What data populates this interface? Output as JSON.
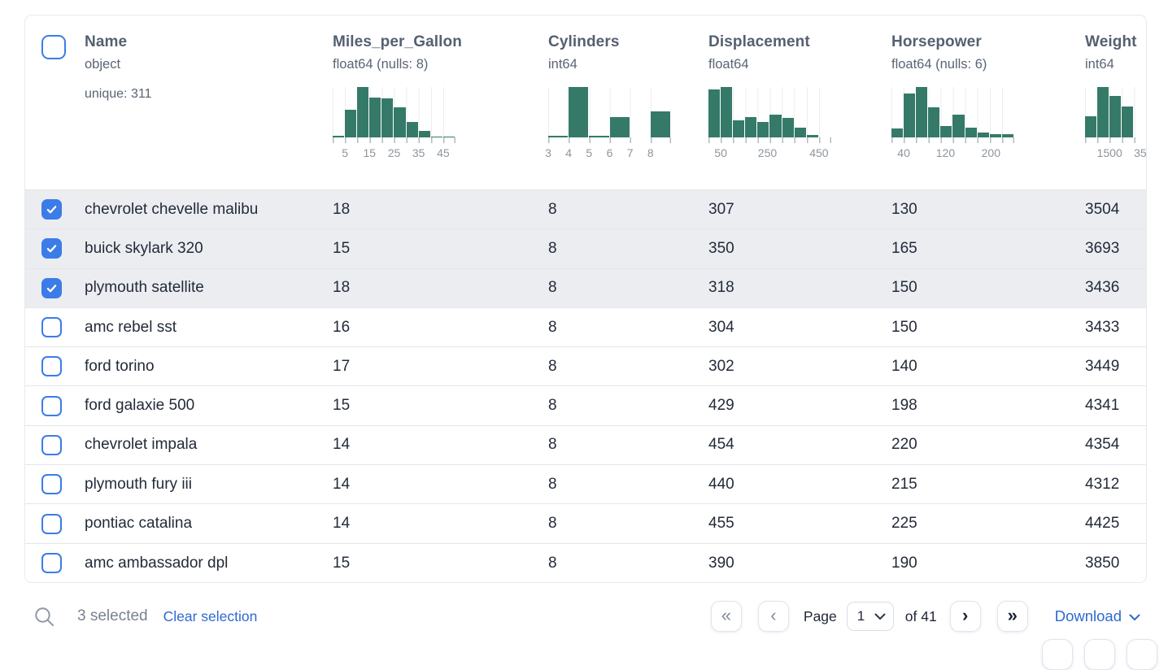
{
  "theme": {
    "green": "#357a68",
    "blue": "#3b7ce8",
    "link": "#2e69d1",
    "selected_row_bg": "#ebedf1",
    "row_border": "#e3e6ea"
  },
  "table": {
    "columns": [
      {
        "name": "Name",
        "type": "object",
        "extra": "unique: 311"
      },
      {
        "name": "Miles_per_Gallon",
        "type": "float64 (nulls: 8)"
      },
      {
        "name": "Cylinders",
        "type": "int64"
      },
      {
        "name": "Displacement",
        "type": "float64"
      },
      {
        "name": "Horsepower",
        "type": "float64 (nulls: 6)"
      },
      {
        "name": "Weight",
        "type": "int64"
      }
    ],
    "rows": [
      {
        "selected": true,
        "name": "chevrolet chevelle malibu",
        "mpg": "18",
        "cyl": "8",
        "disp": "307",
        "hp": "130",
        "weight": "3504"
      },
      {
        "selected": true,
        "name": "buick skylark 320",
        "mpg": "15",
        "cyl": "8",
        "disp": "350",
        "hp": "165",
        "weight": "3693"
      },
      {
        "selected": true,
        "name": "plymouth satellite",
        "mpg": "18",
        "cyl": "8",
        "disp": "318",
        "hp": "150",
        "weight": "3436"
      },
      {
        "selected": false,
        "name": "amc rebel sst",
        "mpg": "16",
        "cyl": "8",
        "disp": "304",
        "hp": "150",
        "weight": "3433"
      },
      {
        "selected": false,
        "name": "ford torino",
        "mpg": "17",
        "cyl": "8",
        "disp": "302",
        "hp": "140",
        "weight": "3449"
      },
      {
        "selected": false,
        "name": "ford galaxie 500",
        "mpg": "15",
        "cyl": "8",
        "disp": "429",
        "hp": "198",
        "weight": "4341"
      },
      {
        "selected": false,
        "name": "chevrolet impala",
        "mpg": "14",
        "cyl": "8",
        "disp": "454",
        "hp": "220",
        "weight": "4354"
      },
      {
        "selected": false,
        "name": "plymouth fury iii",
        "mpg": "14",
        "cyl": "8",
        "disp": "440",
        "hp": "215",
        "weight": "4312"
      },
      {
        "selected": false,
        "name": "pontiac catalina",
        "mpg": "14",
        "cyl": "8",
        "disp": "455",
        "hp": "225",
        "weight": "4425"
      },
      {
        "selected": false,
        "name": "amc ambassador dpl",
        "mpg": "15",
        "cyl": "8",
        "disp": "390",
        "hp": "190",
        "weight": "3850"
      }
    ]
  },
  "chart_data": [
    {
      "type": "bar",
      "column": "Miles_per_Gallon",
      "slots": 10,
      "bar_heights": [
        0.03,
        0.55,
        1.0,
        0.79,
        0.78,
        0.6,
        0.3,
        0.13,
        0.02,
        0.02
      ],
      "tick_labels": [
        {
          "text": "5",
          "pos": 10
        },
        {
          "text": "15",
          "pos": 30
        },
        {
          "text": "25",
          "pos": 50
        },
        {
          "text": "35",
          "pos": 70
        },
        {
          "text": "45",
          "pos": 90
        }
      ]
    },
    {
      "type": "bar",
      "column": "Cylinders",
      "slots": 6,
      "bar_heights": [
        0.04,
        1.0,
        0.03,
        0.4,
        0,
        0.52
      ],
      "tick_labels": [
        {
          "text": "3",
          "pos": 0
        },
        {
          "text": "4",
          "pos": 16.7
        },
        {
          "text": "5",
          "pos": 33.3
        },
        {
          "text": "6",
          "pos": 50
        },
        {
          "text": "7",
          "pos": 66.7
        },
        {
          "text": "8",
          "pos": 83.3
        }
      ]
    },
    {
      "type": "bar",
      "column": "Displacement",
      "slots": 10,
      "bar_heights": [
        0.95,
        1.0,
        0.34,
        0.41,
        0.3,
        0.45,
        0.39,
        0.2,
        0.05,
        0
      ],
      "tick_labels": [
        {
          "text": "50",
          "pos": 10
        },
        {
          "text": "250",
          "pos": 48
        },
        {
          "text": "450",
          "pos": 90
        }
      ]
    },
    {
      "type": "bar",
      "column": "Horsepower",
      "slots": 10,
      "bar_heights": [
        0.17,
        0.87,
        1.0,
        0.59,
        0.23,
        0.45,
        0.2,
        0.1,
        0.07,
        0.06
      ],
      "tick_labels": [
        {
          "text": "40",
          "pos": 10
        },
        {
          "text": "120",
          "pos": 44
        },
        {
          "text": "200",
          "pos": 81
        }
      ]
    },
    {
      "type": "bar",
      "column": "Weight",
      "slots": 10,
      "bar_heights": [
        0.42,
        1.0,
        0.82,
        0.61,
        0,
        0,
        0,
        0,
        0,
        0
      ],
      "tick_labels": [
        {
          "text": "1500",
          "pos": 20
        },
        {
          "text": "35",
          "pos": 45
        }
      ]
    }
  ],
  "footer": {
    "selected_text": "3 selected",
    "clear_label": "Clear selection",
    "page_label": "Page",
    "page_value": "1",
    "of_label": "of 41",
    "download_label": "Download",
    "first_icon": "«",
    "prev_icon": "‹",
    "next_icon": "›",
    "last_icon": "»"
  }
}
